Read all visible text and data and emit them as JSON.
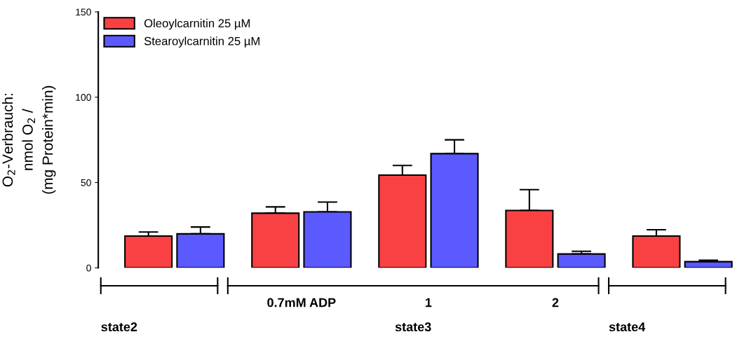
{
  "chart_data": {
    "type": "bar",
    "ylabel": "O$_{2}$-Verbrauch:\nnmol O$_{2}$ /\n(mg Protein*min)",
    "categories": [
      null,
      "0.7mM ADP",
      "1",
      "2",
      null
    ],
    "series": [
      {
        "name": "Oleoylcarnitin 25 µM",
        "color": "#f94144",
        "values": [
          18.6,
          32,
          54.3,
          33.6,
          18.6
        ],
        "errors": [
          [
            18.6,
            21
          ],
          [
            32,
            35.7
          ],
          [
            54.3,
            60
          ],
          [
            33.6,
            45.8
          ],
          [
            18.6,
            22.3
          ]
        ]
      },
      {
        "name": "Stearoylcarnitin 25 µM",
        "color": "#5a5aff",
        "values": [
          19.9,
          32.8,
          66.9,
          8.1,
          3.6
        ],
        "errors": [
          [
            19.9,
            23.9
          ],
          [
            32.8,
            38.5
          ],
          [
            66.9,
            75
          ],
          [
            8.1,
            9.7
          ],
          [
            3.6,
            4.4
          ]
        ]
      }
    ],
    "ylim": [
      0,
      150
    ],
    "yticks": [
      0,
      50,
      100,
      150
    ],
    "grid": false,
    "legend": "top left",
    "annotations": [
      "state2",
      "state3",
      "state4"
    ]
  }
}
